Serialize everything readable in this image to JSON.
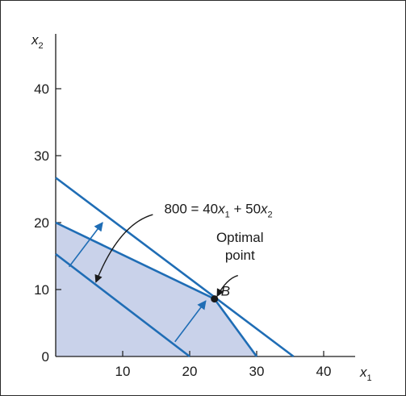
{
  "colors": {
    "region_fill": "#c9d2ea",
    "constraint_line": "#1f6db5",
    "arrow": "#1f6db5",
    "axis": "#1a1a1a",
    "pointer": "#1a1a1a",
    "point": "#1a1a1a"
  },
  "chart_data": {
    "type": "line",
    "title": "",
    "xlabel": "x",
    "xlabel_sub": "1",
    "ylabel": "x",
    "ylabel_sub": "2",
    "xlim": [
      0,
      48
    ],
    "ylim": [
      0,
      48
    ],
    "x_ticks": [
      {
        "value": 10,
        "label": "10"
      },
      {
        "value": 20,
        "label": "20"
      },
      {
        "value": 30,
        "label": "30"
      },
      {
        "value": 40,
        "label": "40"
      }
    ],
    "y_ticks": [
      {
        "value": 0,
        "label": "0"
      },
      {
        "value": 10,
        "label": "10"
      },
      {
        "value": 20,
        "label": "20"
      },
      {
        "value": 30,
        "label": "30"
      },
      {
        "value": 40,
        "label": "40"
      }
    ],
    "grid": false,
    "feasible_region": [
      [
        0,
        0
      ],
      [
        0,
        20
      ],
      [
        23.7,
        8.6
      ],
      [
        30,
        0
      ]
    ],
    "constraint_lines": [
      {
        "points": [
          [
            0,
            26.7
          ],
          [
            35.5,
            0
          ]
        ]
      },
      {
        "points": [
          [
            0,
            20
          ],
          [
            23.7,
            8.6
          ],
          [
            30,
            0
          ]
        ]
      },
      {
        "points": [
          [
            0,
            15.3
          ],
          [
            20,
            0
          ]
        ]
      }
    ],
    "direction_arrows": [
      {
        "from": [
          2,
          13.4
        ],
        "to": [
          7,
          20
        ]
      },
      {
        "from": [
          17.8,
          2.2
        ],
        "to": [
          22.4,
          8.3
        ]
      }
    ],
    "optimal_point": {
      "x": 23.7,
      "y": 8.6,
      "label": "B"
    },
    "annotations": {
      "objective": {
        "parts": [
          "800 = 40",
          "x",
          "1",
          " + 50",
          "x",
          "2"
        ],
        "anchor": [
          16.2,
          21.4
        ],
        "pointer_from": [
          14.5,
          21.2
        ],
        "pointer_to": [
          6,
          11.1
        ]
      },
      "optimal_label": {
        "lines": [
          "Optimal",
          "point"
        ],
        "anchor": [
          27.5,
          17.1
        ],
        "pointer_from": [
          27.2,
          12.1
        ],
        "pointer_to": [
          24.1,
          9
        ]
      }
    }
  }
}
